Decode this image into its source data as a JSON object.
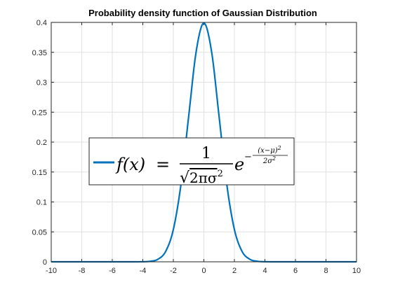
{
  "chart_data": {
    "type": "line",
    "title": "Probability density function of Gaussian Distribution",
    "xlabel": "",
    "ylabel": "",
    "xlim": [
      -10,
      10
    ],
    "ylim": [
      0,
      0.4
    ],
    "xticks": [
      -10,
      -8,
      -6,
      -4,
      -2,
      0,
      2,
      4,
      6,
      8,
      10
    ],
    "xtick_labels": [
      "-10",
      "-8",
      "-6",
      "-4",
      "-2",
      "0",
      "2",
      "4",
      "6",
      "8",
      "10"
    ],
    "yticks": [
      0,
      0.05,
      0.1,
      0.15,
      0.2,
      0.25,
      0.3,
      0.35,
      0.4
    ],
    "ytick_labels": [
      "0",
      "0.05",
      "0.1",
      "0.15",
      "0.2",
      "0.25",
      "0.3",
      "0.35",
      "0.4"
    ],
    "grid": true,
    "legend_placement": "center-left",
    "series": [
      {
        "name": "f(x) = 1/√(2πσ²) e^(−(x−μ)²/(2σ²))",
        "color": "#0072BD",
        "x": [
          -10,
          -9,
          -8,
          -7,
          -6,
          -5,
          -4,
          -3.5,
          -3,
          -2.5,
          -2,
          -1.5,
          -1,
          -0.5,
          0,
          0.5,
          1,
          1.5,
          2,
          2.5,
          3,
          3.5,
          4,
          5,
          6,
          7,
          8,
          9,
          10
        ],
        "y": [
          0,
          0,
          0,
          0,
          0,
          1.5e-06,
          0.000134,
          0.000873,
          0.00443,
          0.0175,
          0.054,
          0.1295,
          0.242,
          0.352,
          0.3989,
          0.352,
          0.242,
          0.1295,
          0.054,
          0.0175,
          0.00443,
          0.000873,
          0.000134,
          1.5e-06,
          0,
          0,
          0,
          0,
          0
        ]
      }
    ]
  }
}
